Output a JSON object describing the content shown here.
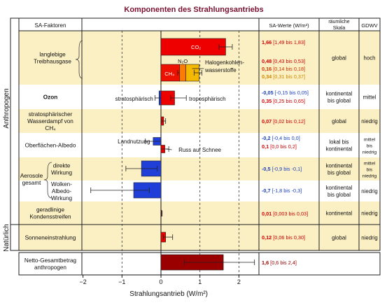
{
  "title": "Komponenten des Strahlungsantriebs",
  "headers": {
    "factors": "SA-Faktoren",
    "values": "SA-Werte (W/m²)",
    "scale_line1": "räumliche",
    "scale_line2": "Skala",
    "gdwv": "GDWV"
  },
  "group_labels": {
    "anthro": "Anthropogen",
    "natural": "Natürlich"
  },
  "rows": [
    {
      "label": [
        "langlebige",
        "Treibhausgase"
      ],
      "values": [
        {
          "main": "1,66",
          "range": "[1,49 bis 1,83]",
          "color": "#cc0000"
        },
        {
          "main": "0,48",
          "range": "[0,43 bis 0,53]",
          "color": "#cc0000"
        },
        {
          "main": "0,16",
          "range": "[0,14 bis 0,18]",
          "color": "#cc3300"
        },
        {
          "main": "0,34",
          "range": "[0,31 bis 0,37]",
          "color": "#cc8800"
        }
      ],
      "scale": [
        "global"
      ],
      "gdwv": [
        "hoch"
      ]
    },
    {
      "label": [
        "Ozon"
      ],
      "values": [
        {
          "main": "-0,05",
          "range": "[-0,15 bis 0,05]",
          "color": "#1a3fbf"
        },
        {
          "main": "0,35",
          "range": "[0,25 bis 0,65]",
          "color": "#cc0000"
        }
      ],
      "scale": [
        "kontinental",
        "bis global"
      ],
      "gdwv": [
        "mittel"
      ]
    },
    {
      "label": [
        "stratosphärischer",
        "Wasserdampf von",
        "CH₄"
      ],
      "values": [
        {
          "main": "0,07",
          "range": "[0,02 bis 0,12]",
          "color": "#cc0000"
        }
      ],
      "scale": [
        "global"
      ],
      "gdwv": [
        "niedrig"
      ]
    },
    {
      "label": [
        "Oberflächen-Albedo"
      ],
      "values": [
        {
          "main": "-0,2",
          "range": "[-0,4 bis 0,0]",
          "color": "#1a3fbf"
        },
        {
          "main": "0,1",
          "range": "[0,0 bis 0,2]",
          "color": "#cc0000"
        }
      ],
      "scale": [
        "lokal bis",
        "kontinental"
      ],
      "gdwv": [
        "mittel",
        "bis",
        "niedrig"
      ]
    },
    {
      "label": [
        "direkte",
        "Wirkung"
      ],
      "values": [
        {
          "main": "-0,5",
          "range": "[-0,9 bis -0,1]",
          "color": "#1a3fbf"
        }
      ],
      "scale": [
        "kontinental",
        "bis global"
      ],
      "gdwv": [
        "mittel",
        "bis",
        "niedrig"
      ]
    },
    {
      "label": [
        "Wolken-",
        "Albedo-",
        "Wirkung"
      ],
      "values": [
        {
          "main": "-0,7",
          "range": "[-1,8 bis -0,3]",
          "color": "#1a3fbf"
        }
      ],
      "scale": [
        "kontinental",
        "bis global"
      ],
      "gdwv": [
        "niedrig"
      ]
    },
    {
      "label": [
        "geradlinige",
        "Kondensstreifen"
      ],
      "values": [
        {
          "main": "0,01",
          "range": "[0,003 bis 0,03]",
          "color": "#cc0000"
        }
      ],
      "scale": [
        "kontinental"
      ],
      "gdwv": [
        "niedrig"
      ]
    },
    {
      "label": [
        "Sonneneinstrahlung"
      ],
      "values": [
        {
          "main": "0,12",
          "range": "[0,06 bis 0,30]",
          "color": "#cc0000"
        }
      ],
      "scale": [
        "global"
      ],
      "gdwv": [
        "niedrig"
      ]
    },
    {
      "label": [
        "Netto-Gesamtbetrag",
        "anthropogen"
      ],
      "values": [
        {
          "main": "1,6",
          "range": "[0,6 bis 2,4]",
          "color": "#990000"
        }
      ],
      "scale": [],
      "gdwv": []
    }
  ],
  "aerosol_label": [
    "Aerosole",
    "gesamt"
  ],
  "annotations": {
    "co2": "CO₂",
    "n2o": "N₂O",
    "ch4": "CH₄",
    "halocarbons": [
      "Halogenkohlen-",
      "wasserstoffe"
    ],
    "strat": "stratosphärisch",
    "trop": "troposphärisch",
    "landuse": "Landnutzung",
    "soot": "Russ auf Schnee"
  },
  "chart_data": {
    "type": "bar",
    "orientation": "horizontal",
    "title": "Komponenten des Strahlungsantriebs",
    "xlabel": "Strahlungsantrieb (W/m²)",
    "xlim": [
      -2,
      2.5
    ],
    "xticks": [
      -2,
      -1,
      0,
      1,
      2
    ],
    "xtick_labels": [
      "−2",
      "−1",
      "0",
      "1",
      "2"
    ],
    "grid": "dashed verticals at -1, 1, 2",
    "bars": [
      {
        "name": "CO2",
        "row": 0,
        "start": 0,
        "value": 1.66,
        "ci": [
          1.49,
          1.83
        ],
        "color": "#ee0000"
      },
      {
        "name": "CH4",
        "row": 0,
        "sub": 1,
        "start": 0,
        "value": 0.48,
        "ci": [
          0.43,
          0.53
        ],
        "color": "#ee1100"
      },
      {
        "name": "N2O",
        "row": 0,
        "sub": 1,
        "start": 0.48,
        "value": 0.16,
        "ci": null,
        "color": "#ff7a00"
      },
      {
        "name": "Halogenkohlenwasserstoffe",
        "row": 0,
        "sub": 1,
        "start": 0.64,
        "value": 0.34,
        "ci": [
          0.85,
          1.05
        ],
        "color": "#f5b800"
      },
      {
        "name": "Ozon stratosphärisch",
        "row": 1,
        "start": 0,
        "value": -0.05,
        "ci": [
          -0.15,
          0.05
        ],
        "color": "#1f3fd8"
      },
      {
        "name": "Ozon troposphärisch",
        "row": 1,
        "start": 0,
        "value": 0.35,
        "ci": [
          0.25,
          0.65
        ],
        "color": "#ee0000"
      },
      {
        "name": "stratosphärischer Wasserdampf",
        "row": 2,
        "start": 0,
        "value": 0.07,
        "ci": [
          0.02,
          0.12
        ],
        "color": "#ee0000"
      },
      {
        "name": "Landnutzung",
        "row": 3,
        "sub": 0,
        "start": 0,
        "value": -0.2,
        "ci": [
          -0.4,
          0.0
        ],
        "color": "#1f3fd8"
      },
      {
        "name": "Russ auf Schnee",
        "row": 3,
        "sub": 1,
        "start": 0,
        "value": 0.1,
        "ci": [
          0.0,
          0.2
        ],
        "color": "#ee0000"
      },
      {
        "name": "Aerosole direkte Wirkung",
        "row": 4,
        "start": 0,
        "value": -0.5,
        "ci": [
          -0.9,
          -0.1
        ],
        "color": "#1f3fd8"
      },
      {
        "name": "Wolken-Albedo-Wirkung",
        "row": 5,
        "start": 0,
        "value": -0.7,
        "ci": [
          -1.8,
          -0.3
        ],
        "color": "#1f3fd8"
      },
      {
        "name": "Kondensstreifen",
        "row": 6,
        "start": 0,
        "value": 0.01,
        "ci": [
          0.003,
          0.03
        ],
        "color": "#ee0000"
      },
      {
        "name": "Sonneneinstrahlung",
        "row": 7,
        "start": 0,
        "value": 0.12,
        "ci": [
          0.06,
          0.3
        ],
        "color": "#ee0000"
      },
      {
        "name": "Netto-Gesamtbetrag anthropogen",
        "row": 8,
        "start": 0,
        "value": 1.6,
        "ci": [
          0.6,
          2.4
        ],
        "color": "#9a0000"
      }
    ]
  }
}
